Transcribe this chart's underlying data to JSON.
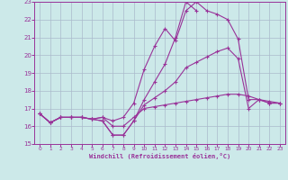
{
  "xlabel": "Windchill (Refroidissement éolien,°C)",
  "background_color": "#cce9e9",
  "grid_color": "#aabbcc",
  "line_color": "#993399",
  "xlim": [
    -0.5,
    23.5
  ],
  "ylim": [
    15,
    23
  ],
  "xticks": [
    0,
    1,
    2,
    3,
    4,
    5,
    6,
    7,
    8,
    9,
    10,
    11,
    12,
    13,
    14,
    15,
    16,
    17,
    18,
    19,
    20,
    21,
    22,
    23
  ],
  "yticks": [
    15,
    16,
    17,
    18,
    19,
    20,
    21,
    22,
    23
  ],
  "series": [
    {
      "x": [
        0,
        1,
        2,
        3,
        4,
        5,
        6,
        7,
        8,
        9,
        10,
        11,
        12,
        13,
        14,
        15,
        16,
        17,
        18,
        19,
        20,
        21,
        22,
        23
      ],
      "y": [
        16.7,
        16.2,
        16.5,
        16.5,
        16.5,
        16.4,
        16.3,
        15.5,
        15.5,
        16.3,
        17.2,
        17.6,
        18.0,
        18.5,
        19.3,
        19.6,
        19.9,
        20.2,
        20.4,
        19.8,
        17.0,
        17.5,
        17.3,
        17.3
      ]
    },
    {
      "x": [
        0,
        1,
        2,
        3,
        4,
        5,
        6,
        7,
        8,
        9,
        10,
        11,
        12,
        13,
        14,
        15,
        16,
        17,
        18,
        19,
        20,
        21,
        22,
        23
      ],
      "y": [
        16.7,
        16.2,
        16.5,
        16.5,
        16.5,
        16.4,
        16.5,
        16.3,
        16.5,
        17.3,
        19.2,
        20.5,
        21.5,
        20.8,
        22.5,
        23.0,
        22.5,
        22.3,
        22.0,
        20.9,
        17.5,
        17.5,
        17.3,
        17.3
      ]
    },
    {
      "x": [
        0,
        1,
        2,
        3,
        4,
        5,
        6,
        7,
        8,
        9,
        10,
        11,
        12,
        13,
        14,
        15
      ],
      "y": [
        16.7,
        16.2,
        16.5,
        16.5,
        16.5,
        16.4,
        16.3,
        15.5,
        15.5,
        16.3,
        17.5,
        18.5,
        19.5,
        21.0,
        23.0,
        22.5
      ]
    },
    {
      "x": [
        0,
        1,
        2,
        3,
        4,
        5,
        6,
        7,
        8,
        9,
        10,
        11,
        12,
        13,
        14,
        15,
        16,
        17,
        18,
        19,
        20,
        21,
        22,
        23
      ],
      "y": [
        16.7,
        16.2,
        16.5,
        16.5,
        16.5,
        16.4,
        16.5,
        16.0,
        16.0,
        16.5,
        17.0,
        17.1,
        17.2,
        17.3,
        17.4,
        17.5,
        17.6,
        17.7,
        17.8,
        17.8,
        17.7,
        17.5,
        17.4,
        17.3
      ]
    }
  ]
}
